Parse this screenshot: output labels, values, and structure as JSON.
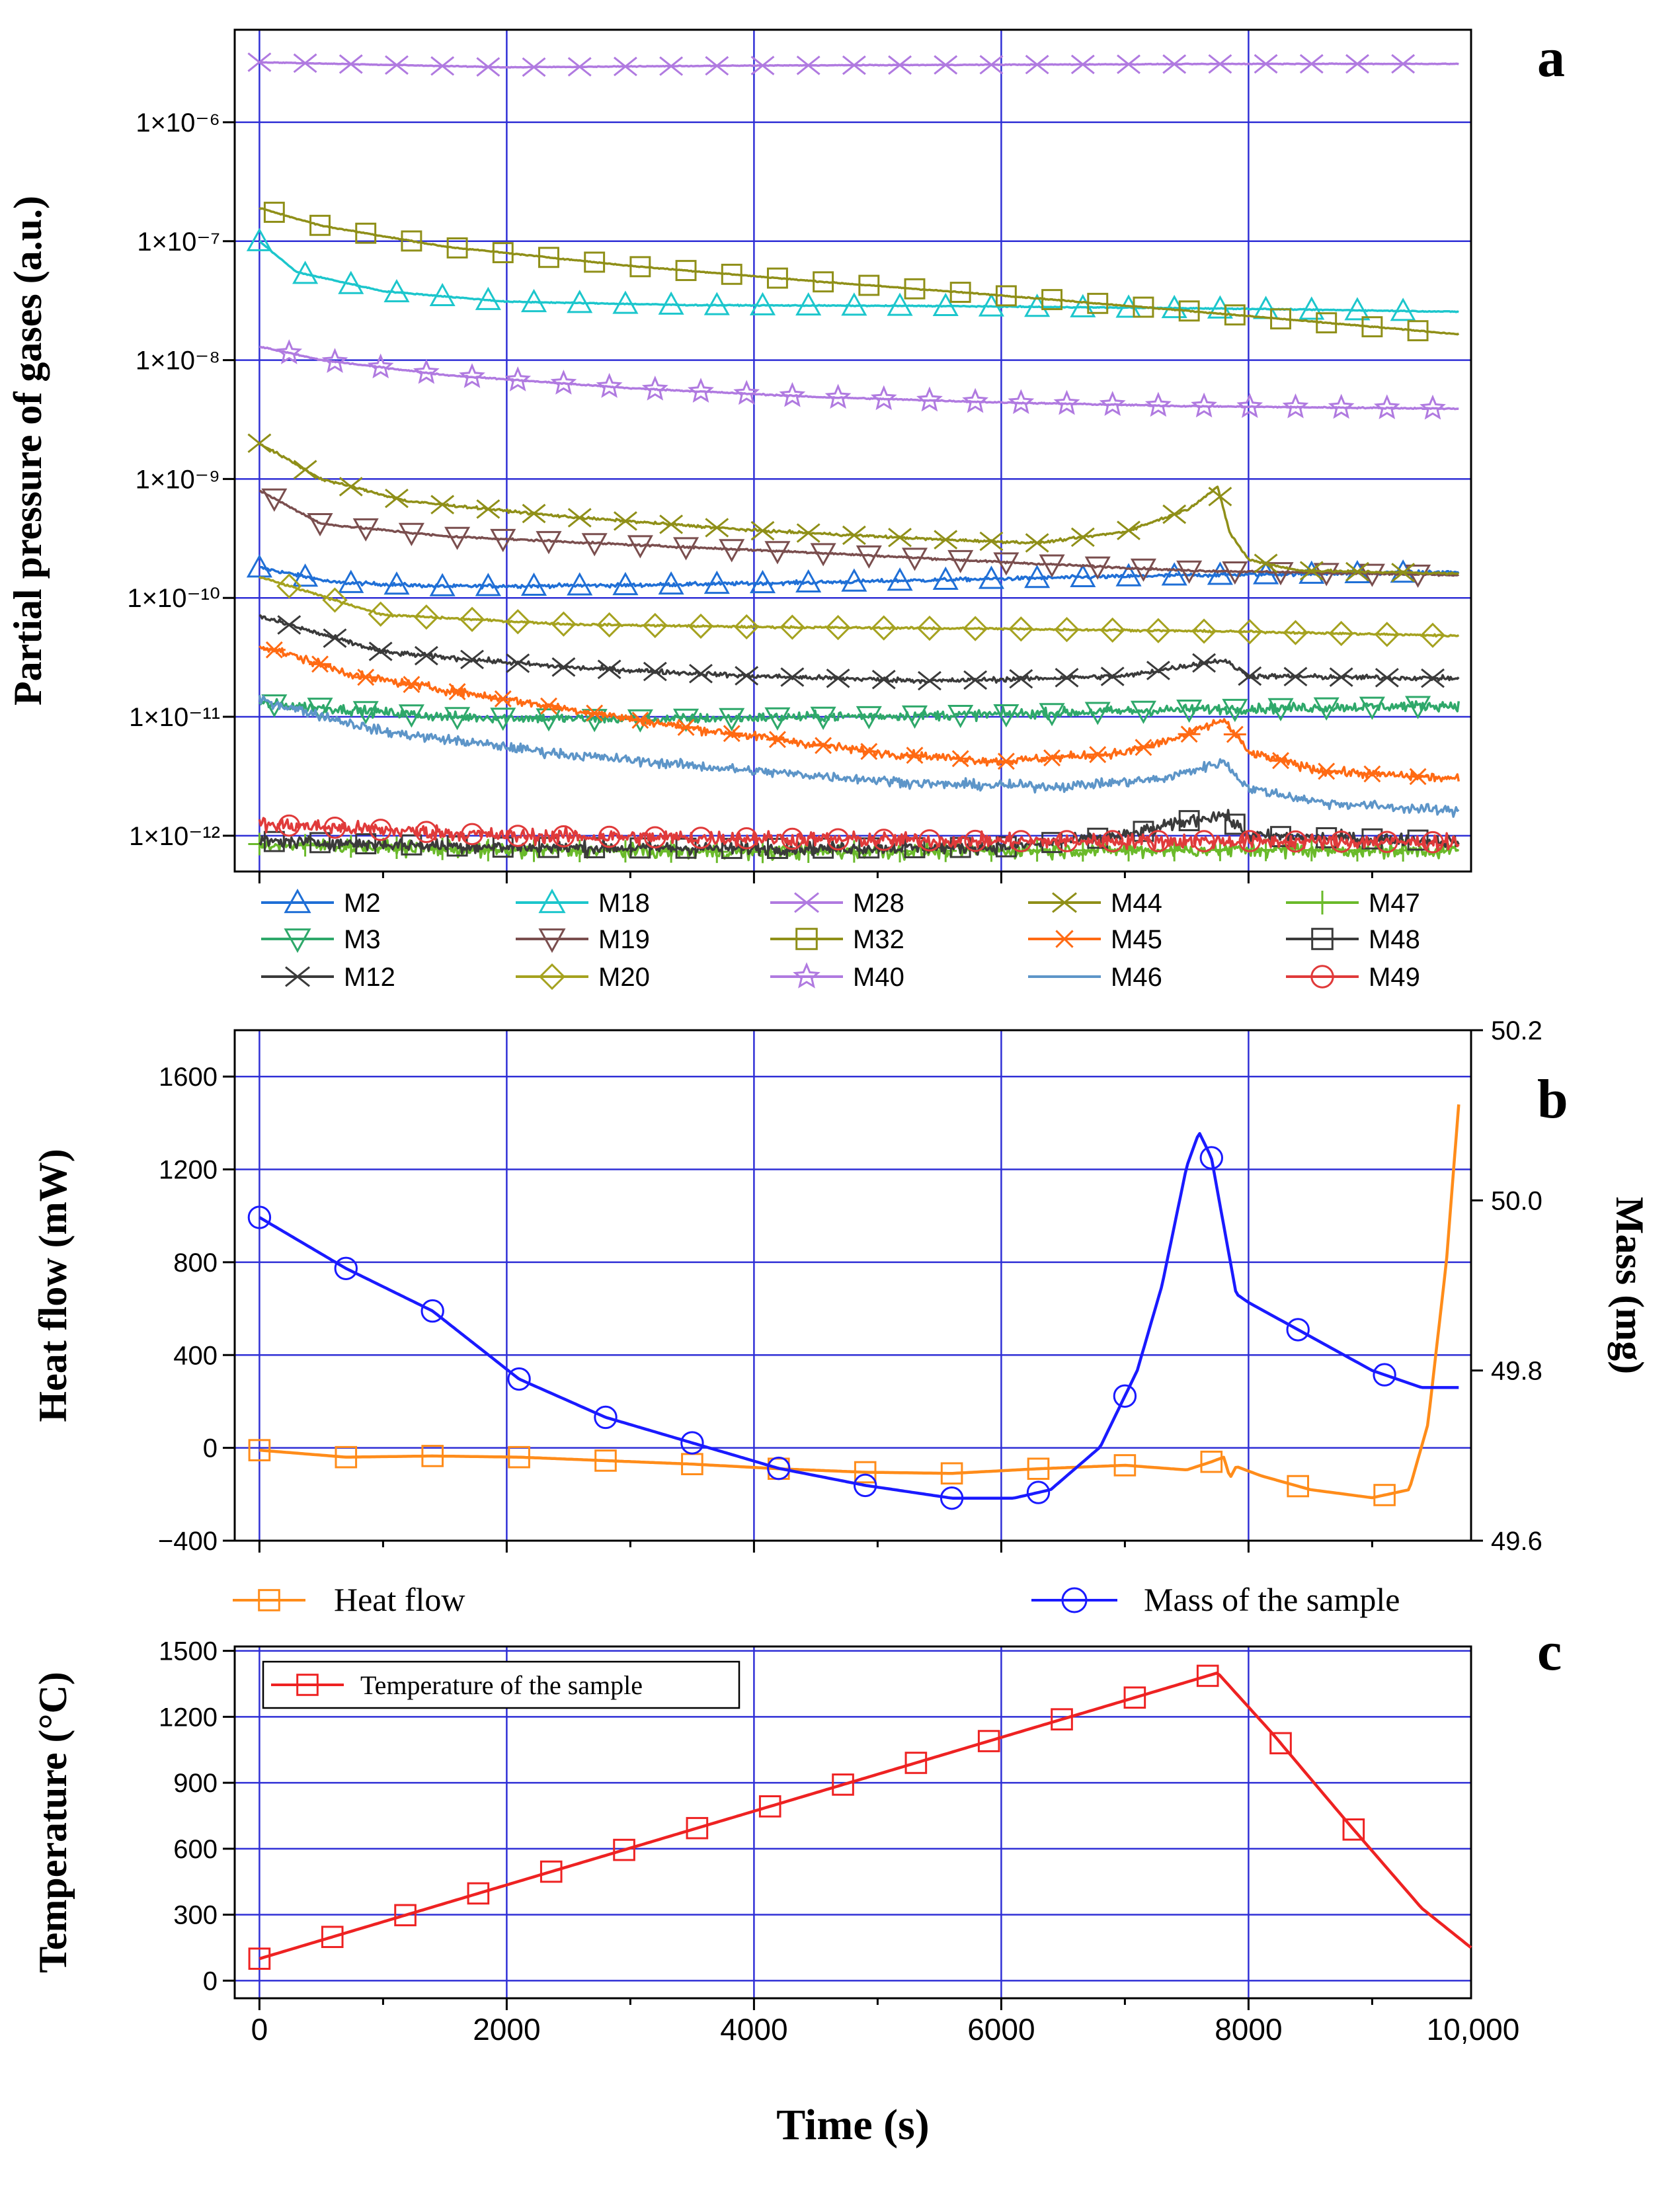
{
  "chart_data": [
    {
      "panel": "a",
      "type": "line",
      "ylabel": "Partial pressure of gases (a.u.)",
      "xlabel": "",
      "y_scale": "log",
      "xlim": [
        -200,
        9800
      ],
      "ylim": [
        5e-13,
        6e-06
      ],
      "x_ticks": [
        0,
        2000,
        4000,
        6000,
        8000
      ],
      "y_ticks": [
        {
          "value": 1e-06,
          "label": "1×10⁻⁶"
        },
        {
          "value": 1e-07,
          "label": "1×10⁻⁷"
        },
        {
          "value": 1e-08,
          "label": "1×10⁻⁸"
        },
        {
          "value": 1e-09,
          "label": "1×10⁻⁹"
        },
        {
          "value": 1e-10,
          "label": "1×10⁻¹⁰"
        },
        {
          "value": 1e-11,
          "label": "1×10⁻¹¹"
        },
        {
          "value": 1e-12,
          "label": "1×10⁻¹²"
        }
      ],
      "grid": true,
      "legend": "below",
      "series": [
        {
          "name": "M2",
          "color": "#1f6fd6",
          "marker": "triangle-up",
          "noise": 0.015,
          "x": [
            0,
            600,
            1500,
            3000,
            4500,
            6000,
            7500,
            9700
          ],
          "y": [
            1.8e-10,
            1.35e-10,
            1.25e-10,
            1.28e-10,
            1.35e-10,
            1.45e-10,
            1.55e-10,
            1.65e-10
          ]
        },
        {
          "name": "M3",
          "color": "#2ea86a",
          "marker": "triangle-down",
          "noise": 0.04,
          "x": [
            0,
            1500,
            3000,
            4500,
            6000,
            7500,
            9700
          ],
          "y": [
            1.3e-11,
            1e-11,
            9.5e-12,
            1e-11,
            1.05e-11,
            1.15e-11,
            1.25e-11
          ]
        },
        {
          "name": "M12",
          "color": "#3a3a3a",
          "marker": "x",
          "noise": 0.02,
          "x": [
            0,
            1000,
            2500,
            4000,
            5500,
            7000,
            7600,
            7800,
            8000,
            9700
          ],
          "y": [
            7e-11,
            3.5e-11,
            2.6e-11,
            2.2e-11,
            2e-11,
            2.2e-11,
            2.8e-11,
            3e-11,
            2.2e-11,
            2.1e-11
          ]
        },
        {
          "name": "M18",
          "color": "#1cc6cc",
          "marker": "triangle-up",
          "noise": 0.004,
          "x": [
            0,
            300,
            1000,
            2000,
            3500,
            5500,
            8000,
            9700
          ],
          "y": [
            1e-07,
            5.5e-08,
            3.8e-08,
            3.1e-08,
            2.9e-08,
            2.85e-08,
            2.7e-08,
            2.55e-08
          ]
        },
        {
          "name": "M19",
          "color": "#7a4e4e",
          "marker": "triangle-down",
          "noise": 0.008,
          "x": [
            0,
            500,
            1500,
            3000,
            4500,
            6000,
            7500,
            9700
          ],
          "y": [
            8e-10,
            4.2e-10,
            3.3e-10,
            2.8e-10,
            2.4e-10,
            2e-10,
            1.7e-10,
            1.55e-10
          ]
        },
        {
          "name": "M20",
          "color": "#a5a21f",
          "marker": "diamond",
          "noise": 0.008,
          "x": [
            0,
            1000,
            2500,
            4000,
            6000,
            8000,
            9700
          ],
          "y": [
            1.5e-10,
            7.2e-11,
            6e-11,
            5.7e-11,
            5.5e-11,
            5.2e-11,
            4.8e-11
          ]
        },
        {
          "name": "M28",
          "color": "#b07ae0",
          "marker": "x",
          "noise": 0.003,
          "x": [
            0,
            2000,
            4000,
            6000,
            8000,
            9700
          ],
          "y": [
            3.2e-06,
            2.9e-06,
            3e-06,
            3.05e-06,
            3.1e-06,
            3.1e-06
          ]
        },
        {
          "name": "M32",
          "color": "#8f8f18",
          "marker": "square",
          "noise": 0.004,
          "x": [
            0,
            500,
            1500,
            3000,
            4500,
            6000,
            7500,
            9700
          ],
          "y": [
            1.9e-07,
            1.35e-07,
            9e-08,
            6.2e-08,
            4.6e-08,
            3.5e-08,
            2.6e-08,
            1.65e-08
          ]
        },
        {
          "name": "M40",
          "color": "#b07ae0",
          "marker": "star",
          "noise": 0.005,
          "x": [
            0,
            500,
            1500,
            3000,
            4500,
            6000,
            7500,
            9700
          ],
          "y": [
            1.3e-08,
            1e-08,
            7.5e-09,
            5.8e-09,
            4.9e-09,
            4.4e-09,
            4.1e-09,
            3.9e-09
          ]
        },
        {
          "name": "M44",
          "color": "#8f8f18",
          "marker": "x",
          "noise": 0.01,
          "x": [
            0,
            500,
            1200,
            2500,
            4000,
            5500,
            6300,
            7000,
            7500,
            7750,
            7850,
            8000,
            8400,
            9700
          ],
          "y": [
            2e-09,
            1e-09,
            6.5e-10,
            4.8e-10,
            3.7e-10,
            3.1e-10,
            2.9e-10,
            3.6e-10,
            5.5e-10,
            8.5e-10,
            3.5e-10,
            2.1e-10,
            1.7e-10,
            1.6e-10
          ]
        },
        {
          "name": "M45",
          "color": "#ff6a13",
          "marker": "asterisk",
          "noise": 0.035,
          "x": [
            0,
            800,
            2000,
            3500,
            5000,
            6000,
            7000,
            7500,
            7800,
            8000,
            8600,
            9700
          ],
          "y": [
            4e-11,
            2.2e-11,
            1.4e-11,
            8e-12,
            5e-12,
            4.2e-12,
            5e-12,
            7e-12,
            9.5e-12,
            5e-12,
            3.5e-12,
            3e-12
          ]
        },
        {
          "name": "M46",
          "color": "#5d95c8",
          "marker": "none",
          "noise": 0.04,
          "x": [
            0,
            1000,
            2500,
            4000,
            5500,
            6500,
            7300,
            7800,
            8000,
            8600,
            9700
          ],
          "y": [
            1.4e-11,
            7.5e-12,
            4.8e-12,
            3.5e-12,
            2.7e-12,
            2.6e-12,
            3e-12,
            4.2e-12,
            2.5e-12,
            1.9e-12,
            1.6e-12
          ]
        },
        {
          "name": "M47",
          "color": "#6aba2a",
          "marker": "plus",
          "noise": 0.06,
          "x": [
            0,
            2000,
            4000,
            6000,
            8000,
            9700
          ],
          "y": [
            8.5e-13,
            7.5e-13,
            7.3e-13,
            7.5e-13,
            7.6e-13,
            7.5e-13
          ]
        },
        {
          "name": "M48",
          "color": "#3a3a3a",
          "marker": "square",
          "noise": 0.05,
          "x": [
            0,
            2000,
            4000,
            6000,
            7000,
            7600,
            7800,
            8000,
            9700
          ],
          "y": [
            9e-13,
            8e-13,
            7.8e-13,
            8e-13,
            1e-12,
            1.4e-12,
            1.5e-12,
            1e-12,
            9e-13
          ]
        },
        {
          "name": "M49",
          "color": "#e03a3a",
          "marker": "circle",
          "noise": 0.06,
          "x": [
            0,
            2000,
            4000,
            6000,
            8000,
            9700
          ],
          "y": [
            1.25e-12,
            1e-12,
            9.5e-13,
            9e-13,
            9e-13,
            8.8e-13
          ]
        }
      ]
    },
    {
      "panel": "b",
      "type": "line",
      "ylabel": "Heat flow (mW)",
      "y2label": "Mass (mg)",
      "xlim": [
        -200,
        9800
      ],
      "ylim": [
        -400,
        1800
      ],
      "y2lim": [
        49.6,
        50.2
      ],
      "x_ticks": [
        0,
        2000,
        4000,
        6000,
        8000
      ],
      "y_ticks": [
        -400,
        0,
        400,
        800,
        1200,
        1600
      ],
      "y2_ticks": [
        49.6,
        49.8,
        50.0,
        50.2
      ],
      "grid": true,
      "legend": "below",
      "series": [
        {
          "name": "Heat flow",
          "color": "#ff8c1a",
          "marker": "square",
          "axis": "left",
          "x": [
            0,
            700,
            1400,
            2100,
            2800,
            3500,
            4200,
            4900,
            5600,
            6300,
            7000,
            7500,
            7700,
            7800,
            7850,
            7900,
            8100,
            8500,
            9000,
            9300,
            9450,
            9600,
            9700
          ],
          "y": [
            -10,
            -40,
            -35,
            -40,
            -55,
            -70,
            -90,
            -105,
            -110,
            -90,
            -75,
            -95,
            -60,
            -40,
            -130,
            -80,
            -120,
            -180,
            -215,
            -180,
            100,
            800,
            1480
          ]
        },
        {
          "name": "Mass of the sample",
          "color": "#1a1aff",
          "marker": "circle",
          "axis": "right",
          "x": [
            0,
            700,
            1400,
            2100,
            2800,
            3500,
            4200,
            4900,
            5600,
            6100,
            6400,
            6800,
            7100,
            7300,
            7500,
            7600,
            7700,
            7800,
            7900,
            8000,
            8500,
            9000,
            9400,
            9700
          ],
          "y": [
            49.98,
            49.92,
            49.87,
            49.79,
            49.745,
            49.715,
            49.685,
            49.665,
            49.65,
            49.65,
            49.66,
            49.71,
            49.8,
            49.9,
            50.04,
            50.08,
            50.05,
            49.97,
            49.89,
            49.88,
            49.84,
            49.8,
            49.78,
            49.78
          ]
        }
      ]
    },
    {
      "panel": "c",
      "type": "line",
      "ylabel": "Temperature (°C)",
      "xlabel": "Time (s)",
      "xlim": [
        -200,
        9800
      ],
      "ylim": [
        -80,
        1520
      ],
      "x_ticks": [
        0,
        2000,
        4000,
        6000,
        8000,
        10000
      ],
      "x_tick_labels": [
        "0",
        "2000",
        "4000",
        "6000",
        "8000",
        "10,000"
      ],
      "y_ticks": [
        0,
        300,
        600,
        900,
        1200,
        1500
      ],
      "grid": true,
      "legend": "top-left",
      "series": [
        {
          "name": "Temperature of the sample",
          "color": "#ee2222",
          "marker": "square",
          "x": [
            0,
            7750,
            8200,
            8800,
            9400,
            9800
          ],
          "y": [
            100,
            1400,
            1120,
            720,
            330,
            150
          ]
        }
      ]
    }
  ],
  "panel_letters": [
    "a",
    "b",
    "c"
  ]
}
